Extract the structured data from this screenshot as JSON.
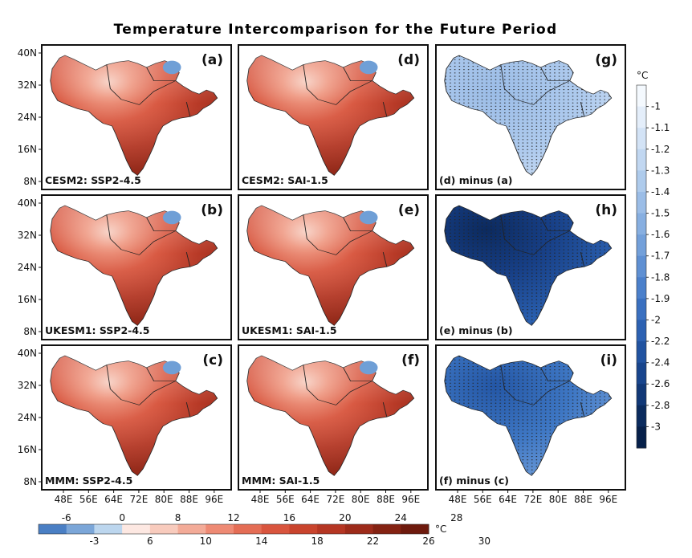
{
  "chart_data": {
    "type": "heatmap",
    "title": "Temperature Intercomparison for the Future Period",
    "lat_ticks": [
      "40N",
      "32N",
      "24N",
      "16N",
      "8N"
    ],
    "lon_ticks": [
      "48E",
      "56E",
      "64E",
      "72E",
      "80E",
      "88E",
      "96E"
    ],
    "panels": [
      {
        "letter": "(a)",
        "caption": "CESM2: SSP2-4.5",
        "field": "absolute",
        "col": 0,
        "row": 0
      },
      {
        "letter": "(b)",
        "caption": "UKESM1: SSP2-4.5",
        "field": "absolute",
        "col": 0,
        "row": 1
      },
      {
        "letter": "(c)",
        "caption": "MMM: SSP2-4.5",
        "field": "absolute",
        "col": 0,
        "row": 2
      },
      {
        "letter": "(d)",
        "caption": "CESM2: SAI-1.5",
        "field": "absolute",
        "col": 1,
        "row": 0
      },
      {
        "letter": "(e)",
        "caption": "UKESM1: SAI-1.5",
        "field": "absolute",
        "col": 1,
        "row": 1
      },
      {
        "letter": "(f)",
        "caption": "MMM: SAI-1.5",
        "field": "absolute",
        "col": 1,
        "row": 2
      },
      {
        "letter": "(g)",
        "caption": "(d) minus (a)",
        "field": "difference",
        "col": 2,
        "row": 0
      },
      {
        "letter": "(h)",
        "caption": "(e) minus (b)",
        "field": "difference",
        "col": 2,
        "row": 1
      },
      {
        "letter": "(i)",
        "caption": "(f) minus (c)",
        "field": "difference",
        "col": 2,
        "row": 2
      }
    ],
    "colorbar_horizontal": {
      "unit": "°C",
      "top_labels": [
        "-6",
        "0",
        "8",
        "12",
        "16",
        "20",
        "24",
        "28"
      ],
      "bottom_labels": [
        "-3",
        "6",
        "10",
        "14",
        "18",
        "22",
        "26",
        "30"
      ],
      "colors": [
        "#4a7fc4",
        "#7ba6d8",
        "#bcd6ee",
        "#fde8e2",
        "#f8cbbd",
        "#f3ab98",
        "#ee8a74",
        "#e46d55",
        "#d9553e",
        "#c9442d",
        "#b53623",
        "#9d2b1a",
        "#842212",
        "#6e1a0d"
      ]
    },
    "colorbar_vertical": {
      "unit": "°C",
      "labels": [
        "-1",
        "-1.1",
        "-1.2",
        "-1.3",
        "-1.4",
        "-1.5",
        "-1.6",
        "-1.7",
        "-1.8",
        "-1.9",
        "-2",
        "-2.2",
        "-2.4",
        "-2.6",
        "-2.8",
        "-3"
      ],
      "colors": [
        "#f4f9fe",
        "#e4eefa",
        "#d3e3f6",
        "#c1d7f1",
        "#aecbec",
        "#9bbde7",
        "#87afe1",
        "#73a0da",
        "#5f90d3",
        "#4b80cb",
        "#3a70c0",
        "#2c61b2",
        "#2153a1",
        "#18458d",
        "#113877",
        "#0b2b5e",
        "#06204a"
      ]
    }
  }
}
